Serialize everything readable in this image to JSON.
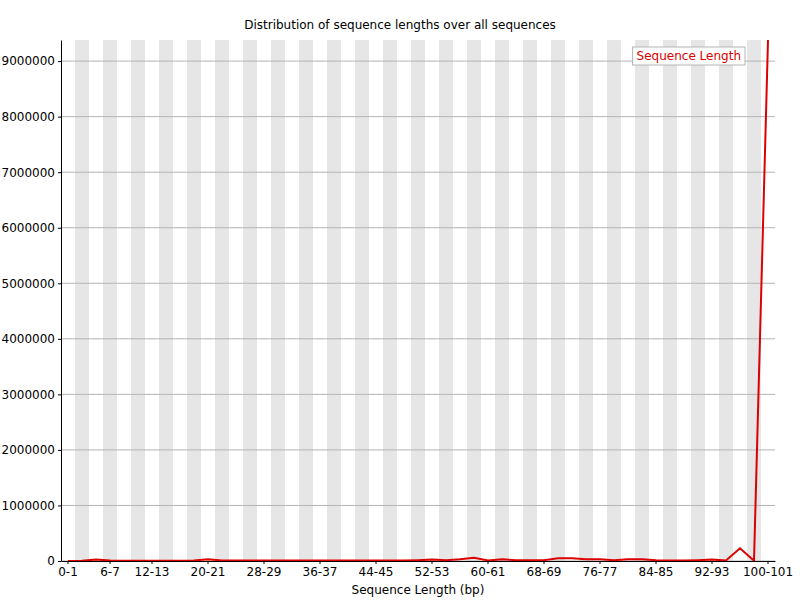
{
  "chart_data": {
    "type": "line",
    "title": "Distribution of sequence lengths over all sequences",
    "x_label": "Sequence Length (bp)",
    "categories": [
      "0-1",
      null,
      null,
      "6-7",
      null,
      null,
      "12-13",
      null,
      null,
      null,
      "20-21",
      null,
      null,
      null,
      "28-29",
      null,
      null,
      null,
      "36-37",
      null,
      null,
      null,
      "44-45",
      null,
      null,
      null,
      "52-53",
      null,
      null,
      null,
      "60-61",
      null,
      null,
      null,
      "68-69",
      null,
      null,
      null,
      "76-77",
      null,
      null,
      null,
      "84-85",
      null,
      null,
      null,
      "92-93",
      null,
      null,
      null,
      "100-101"
    ],
    "series": [
      {
        "name": "Sequence Length",
        "color": "#dc0000",
        "values": [
          0,
          5000,
          25000,
          10000,
          5000,
          5000,
          5000,
          5000,
          5000,
          10000,
          30000,
          10000,
          10000,
          8000,
          8000,
          8000,
          8000,
          8000,
          8000,
          8000,
          8000,
          10000,
          10000,
          10000,
          10000,
          15000,
          25000,
          15000,
          30000,
          60000,
          10000,
          30000,
          15000,
          15000,
          15000,
          50000,
          50000,
          30000,
          30000,
          15000,
          30000,
          30000,
          15000,
          10000,
          10000,
          15000,
          25000,
          10000,
          230000,
          5000,
          9380000
        ]
      }
    ],
    "ylim": [
      0,
      9380000
    ],
    "yticks": [
      0,
      1000000,
      2000000,
      3000000,
      4000000,
      5000000,
      6000000,
      7000000,
      8000000,
      9000000
    ],
    "grid": true,
    "legend": "upper-right"
  }
}
